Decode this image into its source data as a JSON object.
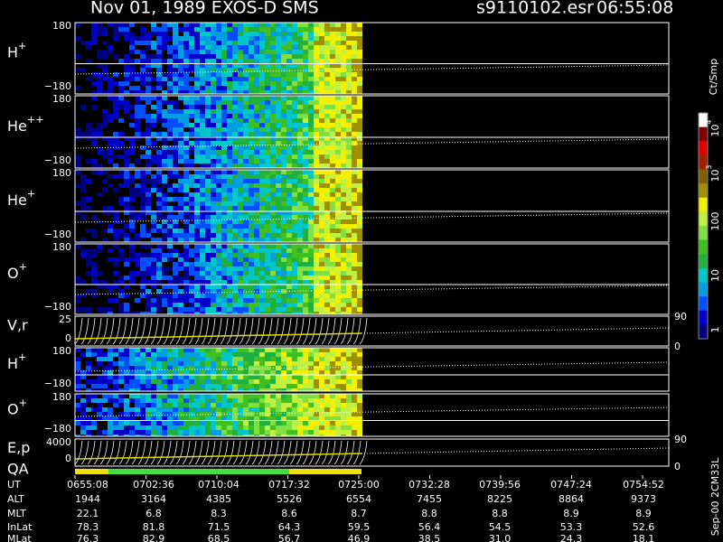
{
  "header": {
    "title": "Nov 01, 1989   EXOS-D SMS",
    "file": "s9110102.esr",
    "time": "06:55:08"
  },
  "panels": [
    {
      "label": "H",
      "sup": "+",
      "ticks": [
        "180",
        "−180"
      ]
    },
    {
      "label": "He",
      "sup": "++",
      "ticks": [
        "180",
        "−180"
      ]
    },
    {
      "label": "He",
      "sup": "+",
      "ticks": [
        "180",
        "−180"
      ]
    },
    {
      "label": "O",
      "sup": "+",
      "ticks": [
        "180",
        "−180"
      ]
    },
    {
      "label": "V,r",
      "ticks": [
        "25",
        "0"
      ],
      "right_ticks": [
        "90",
        "0"
      ]
    },
    {
      "label": "H",
      "sup": "+",
      "ticks": [
        "180",
        "−180"
      ]
    },
    {
      "label": "O",
      "sup": "+",
      "ticks": [
        "180",
        "−180"
      ]
    },
    {
      "label": "E,p",
      "label2": "QA",
      "ticks": [
        "4000",
        "0"
      ],
      "right_ticks": [
        "90",
        "0"
      ]
    }
  ],
  "colorbar": {
    "unit": "Ct/Smp",
    "labels": [
      {
        "base": "10",
        "sup": "4"
      },
      {
        "base": "10",
        "sup": "3"
      },
      {
        "base": "100"
      },
      {
        "base": "10"
      },
      {
        "base": "1"
      }
    ]
  },
  "ephemeris": {
    "rows": [
      {
        "label": "UT",
        "values": [
          "0655:08",
          "0702:36",
          "0710:04",
          "0717:32",
          "0725:00",
          "0732:28",
          "0739:56",
          "0747:24",
          "0754:52"
        ]
      },
      {
        "label": "ALT",
        "values": [
          "1944",
          "3164",
          "4385",
          "5526",
          "6554",
          "7455",
          "8225",
          "8864",
          "9373"
        ]
      },
      {
        "label": "MLT",
        "values": [
          "22.1",
          "6.8",
          "8.3",
          "8.6",
          "8.7",
          "8.8",
          "8.8",
          "8.9",
          "8.9"
        ]
      },
      {
        "label": "InLat",
        "values": [
          "78.3",
          "81.8",
          "71.5",
          "64.3",
          "59.5",
          "56.4",
          "54.5",
          "53.3",
          "52.6"
        ]
      },
      {
        "label": "MLat",
        "values": [
          "76.3",
          "82.9",
          "68.5",
          "56.7",
          "46.9",
          "38.5",
          "31.0",
          "24.3",
          "18.1"
        ]
      }
    ]
  },
  "footer_note": "Sep-00  2CM33L"
}
